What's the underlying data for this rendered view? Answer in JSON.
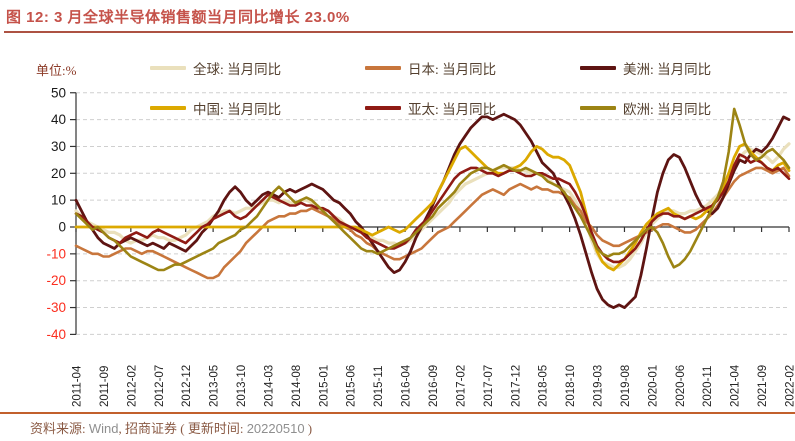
{
  "title": "图 12: 3 月全球半导体销售额当月同比增长 23.0%",
  "unit_label": "单位:%",
  "legend": [
    {
      "label": "全球: 当月同比",
      "color": "#EAE0BC"
    },
    {
      "label": "日本: 当月同比",
      "color": "#C8763C"
    },
    {
      "label": "美洲: 当月同比",
      "color": "#5E1412"
    },
    {
      "label": "中国: 当月同比",
      "color": "#DCA900"
    },
    {
      "label": "亚太: 当月同比",
      "color": "#8F1A14"
    },
    {
      "label": "欧洲: 当月同比",
      "color": "#9C8414"
    }
  ],
  "footer": {
    "source_prefix": "资料来源: ",
    "source_name": "Wind",
    "source_mid": ", 招商证券 ( 更新时间: ",
    "date": "20220510",
    "suffix": " )"
  },
  "chart_data": {
    "type": "line",
    "x_start": "2011-04",
    "x_end": "2022-02",
    "x_months_total": 131,
    "x_tick_every_months": 5,
    "x_tick_labels": [
      "2011-04",
      "2011-09",
      "2012-02",
      "2012-07",
      "2012-12",
      "2013-05",
      "2013-10",
      "2014-03",
      "2014-08",
      "2015-01",
      "2015-06",
      "2015-11",
      "2016-04",
      "2016-09",
      "2017-02",
      "2017-07",
      "2017-12",
      "2018-05",
      "2018-10",
      "2019-03",
      "2019-08",
      "2020-01",
      "2020-06",
      "2020-11",
      "2021-04",
      "2021-09",
      "2022-02"
    ],
    "ylim": [
      -40,
      50
    ],
    "ytick_step": 10,
    "ylabel_positive_color": "#1A1A1A",
    "ylabel_negative_color": "#FB2E1F",
    "grid": "dashed-horizontal",
    "zero_axis": true,
    "legend_position": "top-inside",
    "series": [
      {
        "name": "全球: 当月同比",
        "color": "#EAE0BC",
        "width": 3.2,
        "values": [
          6,
          4,
          2,
          1,
          0,
          -1,
          -2,
          -2,
          -3,
          -5,
          -6,
          -5,
          -5,
          -4,
          -3,
          -4,
          -4,
          -5,
          -5,
          -4,
          -3,
          -1,
          0,
          1,
          2,
          4,
          5,
          6,
          6,
          5,
          6,
          7,
          7,
          8,
          9,
          10,
          10,
          9,
          10,
          9,
          9,
          10,
          10,
          9,
          8,
          6,
          6,
          4,
          3,
          1,
          0,
          -1,
          -2,
          -3,
          -4,
          -5,
          -5,
          -6,
          -6,
          -7,
          -6,
          -5,
          -3,
          -1,
          1,
          3,
          5,
          7,
          9,
          12,
          14,
          16,
          17,
          18,
          19,
          20,
          21,
          22,
          22,
          22,
          22,
          21,
          21,
          20,
          20,
          19,
          18,
          16,
          15,
          14,
          13,
          10,
          6,
          2,
          -5,
          -10,
          -13,
          -14,
          -15,
          -15,
          -14,
          -12,
          -9,
          -6,
          -2,
          1,
          3,
          5,
          6,
          6,
          5,
          5,
          6,
          6,
          7,
          8,
          10,
          12,
          15,
          18,
          22,
          26,
          28,
          29,
          28,
          27,
          26,
          24,
          26,
          29,
          31
        ]
      },
      {
        "name": "日本: 当月同比",
        "color": "#C8763C",
        "width": 2.6,
        "values": [
          -7,
          -8,
          -9,
          -10,
          -10,
          -11,
          -11,
          -10,
          -9,
          -8,
          -8,
          -9,
          -10,
          -9,
          -9,
          -10,
          -11,
          -12,
          -13,
          -14,
          -15,
          -16,
          -17,
          -18,
          -19,
          -19,
          -18,
          -15,
          -13,
          -11,
          -9,
          -6,
          -4,
          -2,
          0,
          2,
          3,
          4,
          4,
          5,
          5,
          6,
          6,
          7,
          6,
          5,
          4,
          3,
          1,
          0,
          -1,
          -3,
          -4,
          -6,
          -7,
          -9,
          -10,
          -11,
          -12,
          -12,
          -11,
          -10,
          -9,
          -8,
          -6,
          -4,
          -2,
          -1,
          0,
          2,
          4,
          6,
          8,
          10,
          12,
          13,
          14,
          13,
          12,
          14,
          15,
          16,
          15,
          14,
          15,
          14,
          14,
          13,
          13,
          12,
          11,
          8,
          6,
          2,
          0,
          -3,
          -5,
          -6,
          -7,
          -7,
          -6,
          -5,
          -4,
          -3,
          -2,
          -1,
          0,
          1,
          1,
          0,
          -1,
          -2,
          -2,
          -1,
          1,
          3,
          5,
          8,
          11,
          14,
          17,
          19,
          20,
          21,
          22,
          22,
          21,
          20,
          21,
          22,
          19
        ]
      },
      {
        "name": "美洲: 当月同比",
        "color": "#5E1412",
        "width": 2.8,
        "values": [
          10,
          6,
          2,
          -1,
          -4,
          -6,
          -7,
          -8,
          -6,
          -5,
          -4,
          -5,
          -6,
          -7,
          -6,
          -7,
          -8,
          -6,
          -7,
          -8,
          -9,
          -7,
          -5,
          -2,
          0,
          3,
          6,
          10,
          13,
          15,
          13,
          10,
          8,
          10,
          12,
          13,
          12,
          11,
          13,
          14,
          13,
          14,
          15,
          16,
          15,
          14,
          12,
          10,
          9,
          7,
          5,
          2,
          0,
          -3,
          -6,
          -9,
          -12,
          -15,
          -17,
          -16,
          -13,
          -9,
          -4,
          0,
          4,
          8,
          13,
          17,
          22,
          27,
          31,
          34,
          37,
          39,
          41,
          41,
          40,
          41,
          42,
          41,
          40,
          38,
          35,
          32,
          28,
          24,
          22,
          20,
          16,
          12,
          8,
          3,
          -3,
          -10,
          -17,
          -23,
          -27,
          -29,
          -30,
          -29,
          -30,
          -28,
          -26,
          -18,
          -8,
          3,
          13,
          20,
          25,
          27,
          26,
          22,
          17,
          12,
          8,
          6,
          5,
          7,
          11,
          16,
          21,
          25,
          24,
          27,
          29,
          28,
          30,
          33,
          37,
          41,
          40
        ]
      },
      {
        "name": "中国: 当月同比",
        "color": "#DCA900",
        "width": 2.8,
        "values": [
          0,
          0,
          0,
          0,
          0,
          0,
          0,
          0,
          0,
          0,
          0,
          0,
          0,
          0,
          0,
          0,
          0,
          0,
          0,
          0,
          0,
          0,
          0,
          0,
          0,
          0,
          0,
          0,
          0,
          0,
          0,
          0,
          0,
          0,
          0,
          0,
          0,
          0,
          0,
          0,
          0,
          0,
          0,
          0,
          0,
          0,
          0,
          0,
          0,
          0,
          0,
          0,
          -1,
          -2,
          -3,
          -2,
          -1,
          0,
          -1,
          -2,
          -1,
          1,
          3,
          5,
          7,
          9,
          13,
          17,
          21,
          25,
          29,
          30,
          28,
          26,
          24,
          22,
          21,
          20,
          20,
          21,
          22,
          23,
          25,
          28,
          30,
          29,
          27,
          26,
          26,
          25,
          23,
          18,
          13,
          5,
          -3,
          -9,
          -13,
          -15,
          -16,
          -14,
          -12,
          -9,
          -6,
          -2,
          1,
          3,
          5,
          6,
          7,
          5,
          4,
          3,
          4,
          3,
          4,
          6,
          8,
          11,
          15,
          20,
          26,
          30,
          31,
          28,
          26,
          24,
          22,
          21,
          23,
          24,
          21
        ]
      },
      {
        "name": "亚太: 当月同比",
        "color": "#8F1A14",
        "width": 2.6,
        "values": [
          5,
          4,
          2,
          0,
          -1,
          -2,
          -4,
          -5,
          -6,
          -4,
          -3,
          -2,
          -3,
          -4,
          -2,
          -1,
          -2,
          -3,
          -4,
          -5,
          -6,
          -4,
          -2,
          0,
          1,
          3,
          4,
          5,
          6,
          4,
          3,
          4,
          6,
          8,
          10,
          12,
          11,
          10,
          9,
          8,
          8,
          9,
          8,
          8,
          7,
          7,
          6,
          4,
          2,
          1,
          0,
          -1,
          -2,
          -4,
          -5,
          -6,
          -7,
          -8,
          -8,
          -7,
          -6,
          -4,
          -1,
          1,
          3,
          6,
          9,
          12,
          15,
          18,
          20,
          21,
          22,
          22,
          21,
          20,
          20,
          19,
          20,
          21,
          21,
          20,
          19,
          19,
          20,
          20,
          19,
          18,
          18,
          17,
          16,
          13,
          9,
          4,
          -2,
          -7,
          -10,
          -12,
          -13,
          -13,
          -12,
          -10,
          -8,
          -5,
          -1,
          2,
          4,
          5,
          5,
          4,
          4,
          3,
          4,
          5,
          6,
          7,
          8,
          10,
          13,
          17,
          23,
          27,
          26,
          24,
          25,
          24,
          22,
          21,
          22,
          20,
          18
        ]
      },
      {
        "name": "欧洲: 当月同比",
        "color": "#9C8414",
        "width": 2.6,
        "values": [
          5,
          3,
          1,
          -1,
          0,
          -2,
          -4,
          -5,
          -7,
          -9,
          -11,
          -12,
          -13,
          -14,
          -15,
          -16,
          -16,
          -15,
          -14,
          -14,
          -13,
          -12,
          -11,
          -10,
          -9,
          -8,
          -6,
          -5,
          -4,
          -3,
          -1,
          0,
          2,
          4,
          7,
          10,
          13,
          15,
          13,
          11,
          9,
          10,
          11,
          10,
          8,
          6,
          4,
          2,
          0,
          -2,
          -4,
          -6,
          -8,
          -9,
          -9,
          -10,
          -9,
          -8,
          -7,
          -6,
          -5,
          -4,
          -2,
          0,
          2,
          4,
          7,
          9,
          11,
          13,
          16,
          18,
          20,
          21,
          22,
          22,
          21,
          22,
          23,
          22,
          21,
          21,
          22,
          21,
          20,
          19,
          17,
          16,
          15,
          13,
          10,
          7,
          4,
          0,
          -4,
          -8,
          -10,
          -11,
          -10,
          -10,
          -9,
          -7,
          -5,
          -3,
          -1,
          0,
          -2,
          -6,
          -11,
          -15,
          -14,
          -12,
          -9,
          -5,
          -1,
          3,
          7,
          11,
          17,
          28,
          44,
          38,
          31,
          27,
          25,
          26,
          28,
          29,
          27,
          25,
          22
        ]
      }
    ]
  }
}
